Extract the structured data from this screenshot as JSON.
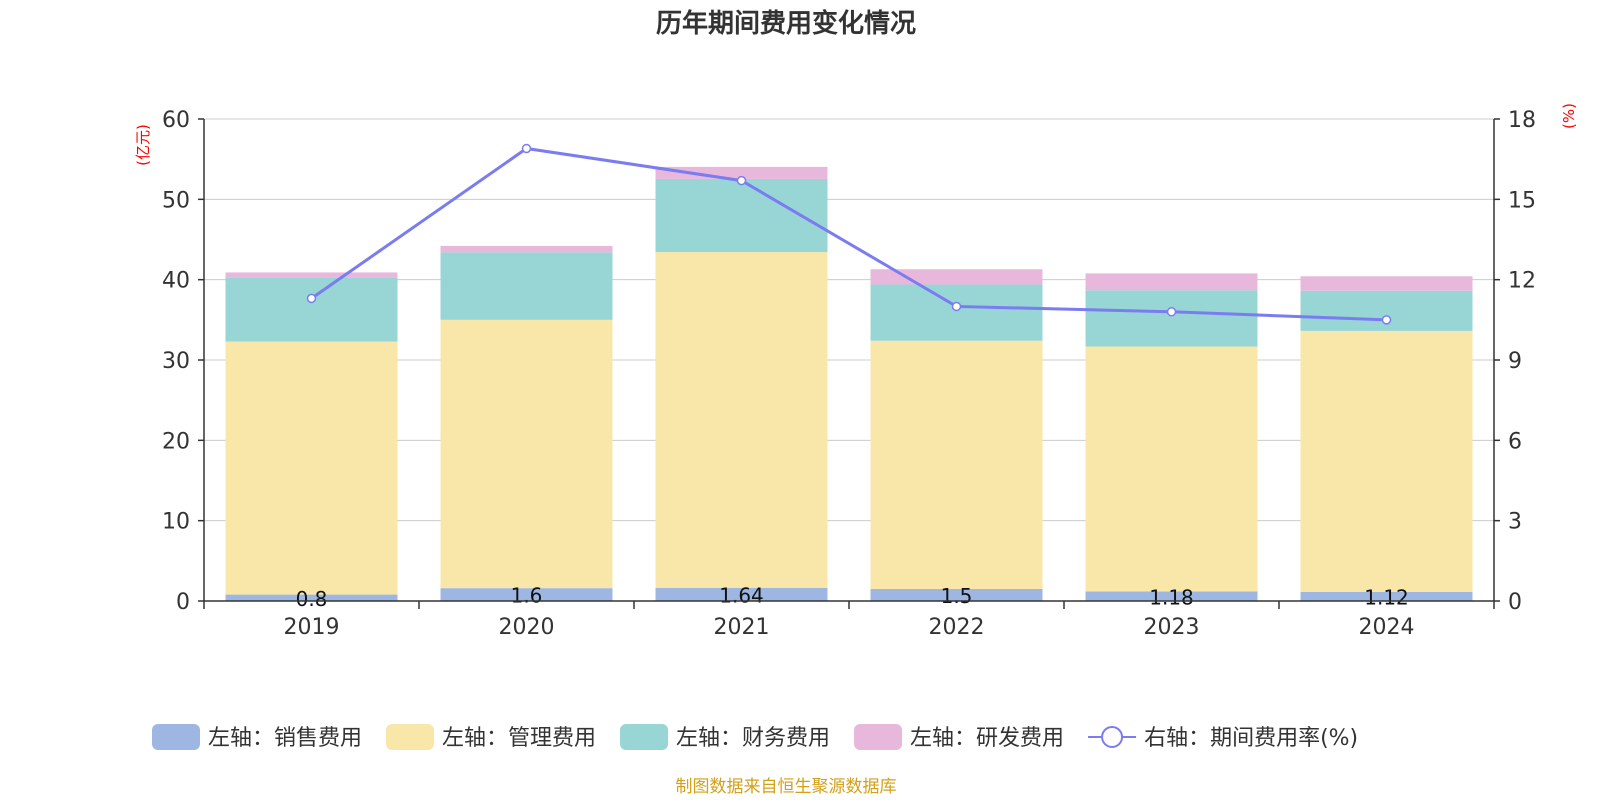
{
  "chart_data": {
    "type": "bar",
    "title": "历年期间费用变化情况",
    "categories": [
      "2019",
      "2020",
      "2021",
      "2022",
      "2023",
      "2024"
    ],
    "left_axis": {
      "unit": "(亿元)",
      "ylim": [
        0,
        60
      ],
      "ticks": [
        0,
        10,
        20,
        30,
        40,
        50,
        60
      ]
    },
    "right_axis": {
      "unit": "(%)",
      "ylim": [
        0,
        18
      ],
      "ticks": [
        0,
        3,
        6,
        9,
        12,
        15,
        18
      ]
    },
    "series": [
      {
        "name": "左轴：销售费用",
        "axis": "left",
        "kind": "bar",
        "color": "#9db7e2",
        "values": [
          0.8,
          1.6,
          1.64,
          1.5,
          1.18,
          1.12
        ],
        "labels": [
          "0.8",
          "1.6",
          "1.64",
          "1.5",
          "1.18",
          "1.12"
        ]
      },
      {
        "name": "左轴：管理费用",
        "axis": "left",
        "kind": "bar",
        "color": "#f8e7a9",
        "values": [
          31.5,
          33.4,
          41.8,
          30.9,
          30.5,
          32.5
        ]
      },
      {
        "name": "左轴：财务费用",
        "axis": "left",
        "kind": "bar",
        "color": "#98d5d5",
        "values": [
          8.0,
          8.4,
          9.1,
          7.0,
          7.0,
          5.0
        ]
      },
      {
        "name": "左轴：研发费用",
        "axis": "left",
        "kind": "bar",
        "color": "#e8b8dc",
        "values": [
          0.6,
          0.8,
          1.5,
          1.9,
          2.1,
          1.8
        ]
      },
      {
        "name": "右轴：期间费用率(%)",
        "axis": "right",
        "kind": "line",
        "color": "#7a7cf0",
        "values": [
          11.3,
          16.9,
          15.7,
          11.0,
          10.8,
          10.5
        ]
      }
    ],
    "grid": true,
    "legend_position": "bottom"
  },
  "source_note": "制图数据来自恒生聚源数据库",
  "colors": {
    "title": "#333333",
    "unit": "#ff0000",
    "source": "#d4a017",
    "grid": "#cccccc",
    "axis": "#333333"
  }
}
